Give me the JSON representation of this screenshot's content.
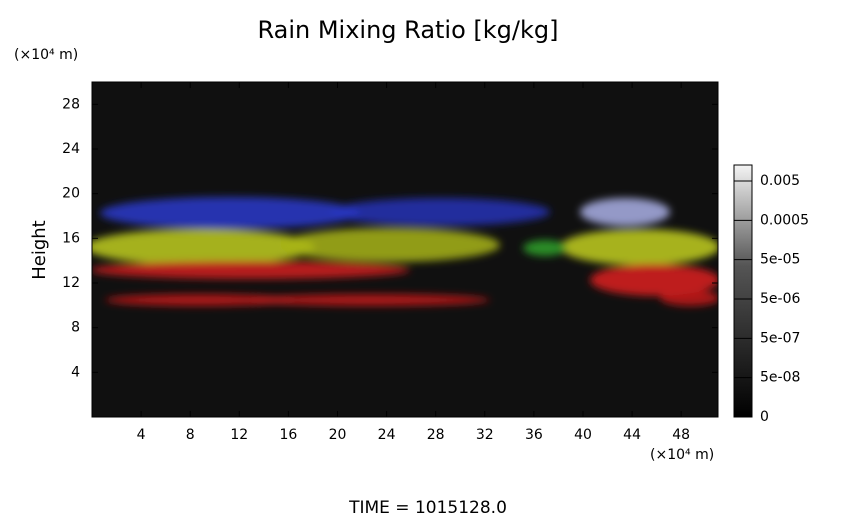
{
  "chart_data": {
    "type": "volume_render",
    "title": "Rain Mixing Ratio [kg/kg]",
    "y_label": "Height",
    "y_unit": "(×10⁴ m)",
    "x_unit": "(×10⁴ m)",
    "footer": "TIME = 1015128.0",
    "xlim": [
      0,
      51
    ],
    "xticks": [
      4,
      8,
      12,
      16,
      20,
      24,
      28,
      32,
      36,
      40,
      44,
      48
    ],
    "ylim": [
      0,
      30
    ],
    "yticks": [
      4,
      8,
      12,
      16,
      20,
      24,
      28
    ],
    "colorbar_ticks": [
      {
        "value": 0,
        "label": "0"
      },
      {
        "value": 5e-08,
        "label": "5e-08"
      },
      {
        "value": 5e-07,
        "label": "5e-07"
      },
      {
        "value": 5e-06,
        "label": "5e-06"
      },
      {
        "value": 5e-05,
        "label": "5e-05"
      },
      {
        "value": 0.0005,
        "label": "0.0005"
      },
      {
        "value": 0.005,
        "label": "0.005"
      }
    ]
  }
}
